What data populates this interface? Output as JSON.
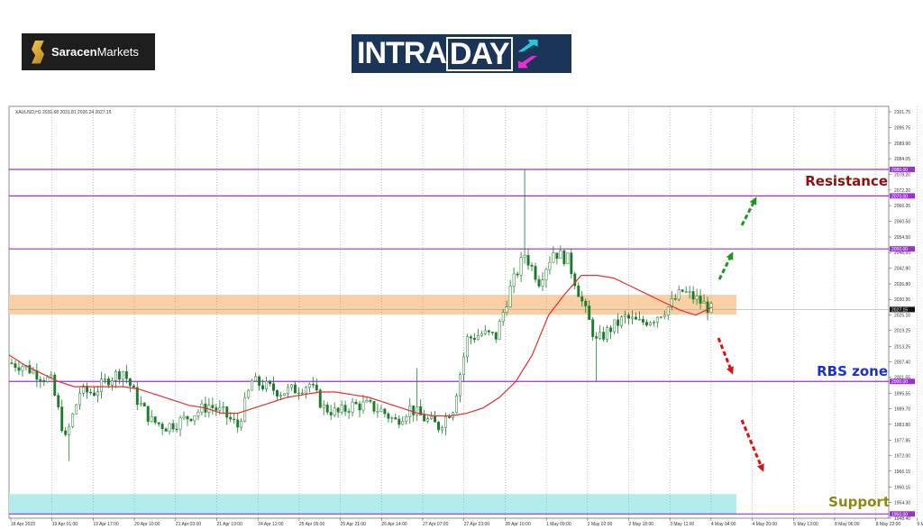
{
  "logos": {
    "left": "SaracenMarkets",
    "left_bold": "Saracen",
    "left_light": "Markets",
    "right": "INTRADAY",
    "right_a": "INTRA",
    "right_b": "DAY"
  },
  "chart_data": {
    "type": "candlestick",
    "symbol_header": "XAUUSD,H1  2031.68 2031.81 2026.24 2027.15",
    "ylim": [
      1948.4,
      2101.75
    ],
    "y_ticks": [
      "2101.75",
      "2095.75",
      "2089.90",
      "2084.05",
      "2078.20",
      "2072.20",
      "2066.35",
      "2060.50",
      "2054.50",
      "2048.65",
      "2042.80",
      "2036.80",
      "2030.95",
      "2025.10",
      "2019.25",
      "2013.25",
      "2007.40",
      "2001.55",
      "1995.55",
      "1989.70",
      "1983.80",
      "1977.85",
      "1972.00",
      "1966.15",
      "1960.15",
      "1954.30",
      "1948.40"
    ],
    "x_ticks": [
      "18 Apr 2023",
      "19 Apr 01:00",
      "19 Apr 17:00",
      "20 Apr 10:00",
      "21 Apr 03:00",
      "21 Apr 19:00",
      "24 Apr 12:00",
      "25 Apr 05:00",
      "25 Apr 21:00",
      "26 Apr 14:00",
      "27 Apr 07:00",
      "27 Apr 23:00",
      "28 Apr 16:00",
      "1 May 09:00",
      "2 May 02:00",
      "2 May 18:00",
      "3 May 11:00",
      "4 May 04:00",
      "4 May 20:00",
      "5 May 13:00",
      "8 May 06:00",
      "8 May 22:00",
      "9 May 15:00",
      "10 May 08:00"
    ],
    "close_samples": [
      2007,
      2006,
      2003,
      2000,
      1978,
      1996,
      1996,
      2001,
      2004,
      1993,
      1985,
      1983,
      1985,
      1988,
      1991,
      1988,
      1983,
      2000,
      1998,
      1996,
      1997,
      1999,
      1990,
      1988,
      1991,
      1991,
      1989,
      1985,
      1990,
      1986,
      1983,
      1990,
      2016,
      2018,
      2017,
      2035,
      2048,
      2038,
      2049,
      2046,
      2030,
      2015,
      2020,
      2024,
      2022,
      2024,
      2028,
      2034,
      2031,
      2027
    ],
    "ma_samples": [
      2010,
      2006,
      2003,
      2000,
      1998,
      1998,
      1998,
      1998,
      1997,
      1995,
      1993,
      1991,
      1990,
      1988,
      1988,
      1990,
      1992,
      1994,
      1995,
      1996,
      1996,
      1995,
      1994,
      1992,
      1990,
      1988,
      1987,
      1987,
      1988,
      1990,
      1994,
      2000,
      2010,
      2025,
      2033,
      2040,
      2040,
      2039,
      2036,
      2033,
      2030,
      2027,
      2025,
      2028
    ],
    "last_price": "2027.15",
    "levels": [
      {
        "price": 2080,
        "label": "2080.00"
      },
      {
        "price": 2070,
        "label": "2070.00"
      },
      {
        "price": 2050,
        "label": "2050.00"
      },
      {
        "price": 2000,
        "label": "2000.00"
      },
      {
        "price": 1950,
        "label": "1950.00"
      }
    ],
    "zones": [
      {
        "name": "RBS zone",
        "from": 2025.25,
        "to": 2032.7,
        "color": "#f9cfa5"
      },
      {
        "name": "Support",
        "from": 1950,
        "to": 1957.5,
        "color": "#b2ecec"
      }
    ],
    "annotations": {
      "resistance": "Resistance",
      "rbs": "RBS zone",
      "support": "Support"
    },
    "colors": {
      "level": "#9b30d9",
      "ma": "#e03030",
      "candle": "#1a7a2a",
      "resistance": "#8b1010",
      "rbs": "#1a2ee0",
      "support": "#8a8a10",
      "up_arrow": "#1a9a1a",
      "down_arrow": "#e01010"
    }
  }
}
